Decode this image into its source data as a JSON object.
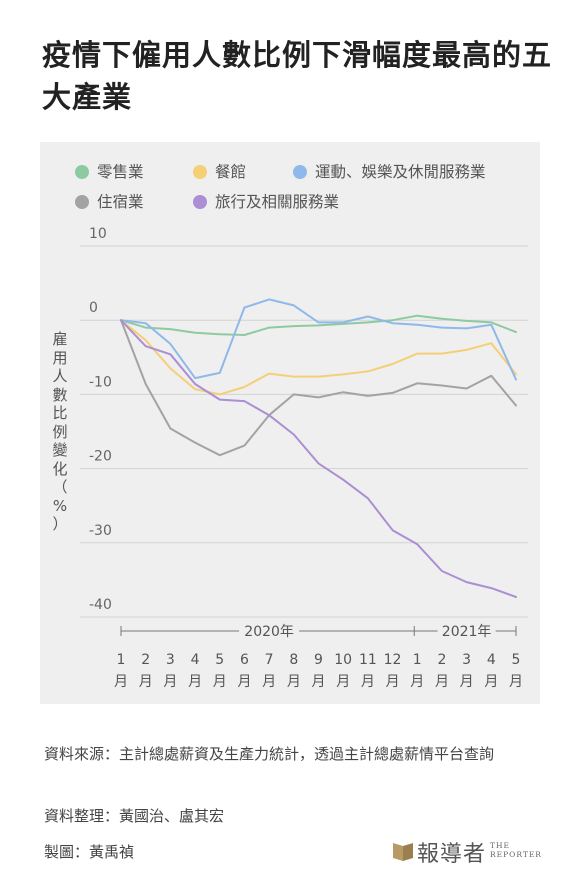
{
  "title": "疫情下僱用人數比例下滑幅度最高的五大產業",
  "ylabel_chars": [
    "雇",
    "用",
    "人",
    "數",
    "比",
    "例",
    "變",
    "化",
    "（",
    "%",
    "）"
  ],
  "footer": {
    "source": "資料來源：主計總處薪資及生產力統計，透過主計總處薪情平台查詢",
    "compiled": "資料整理：黃國治、盧其宏",
    "graphic": "製圖：黃禹禎"
  },
  "logo": {
    "zh": "報導者",
    "en_line1": "THE",
    "en_line2": "REPORTER"
  },
  "chart_data": {
    "type": "line",
    "ylabel": "雇用人數比例變化（%）",
    "ylim": [
      -40,
      10
    ],
    "yticks": [
      10,
      0,
      -10,
      -20,
      -30,
      -40
    ],
    "year_labels": [
      "2020年",
      "2021年"
    ],
    "x_months": [
      "1",
      "2",
      "3",
      "4",
      "5",
      "6",
      "7",
      "8",
      "9",
      "10",
      "11",
      "12",
      "1",
      "2",
      "3",
      "4",
      "5"
    ],
    "x_unit": "月",
    "series": [
      {
        "name": "零售業",
        "color": "#8ecaa0",
        "values": [
          0,
          -1,
          -1.2,
          -1.7,
          -1.9,
          -2,
          -1,
          -0.8,
          -0.7,
          -0.5,
          -0.3,
          0,
          0.6,
          0.2,
          -0.1,
          -0.3,
          -1.6
        ]
      },
      {
        "name": "餐館",
        "color": "#f5cf76",
        "values": [
          0,
          -2.7,
          -6.5,
          -9.3,
          -10,
          -9,
          -7.2,
          -7.6,
          -7.6,
          -7.3,
          -6.9,
          -5.9,
          -4.5,
          -4.5,
          -4,
          -3.1,
          -7.3
        ]
      },
      {
        "name": "運動、娛樂及休閒服務業",
        "color": "#8fb9ea",
        "values": [
          0,
          -0.4,
          -3.2,
          -7.8,
          -7.1,
          1.7,
          2.8,
          2,
          -0.3,
          -0.3,
          0.5,
          -0.4,
          -0.6,
          -1,
          -1.1,
          -0.6,
          -8
        ]
      },
      {
        "name": "住宿業",
        "color": "#a3a3a3",
        "values": [
          0,
          -8.6,
          -14.6,
          -16.5,
          -18.2,
          -16.9,
          -12.8,
          -10,
          -10.4,
          -9.7,
          -10.2,
          -9.8,
          -8.5,
          -8.8,
          -9.2,
          -7.5,
          -11.5
        ]
      },
      {
        "name": "旅行及相關服務業",
        "color": "#ab8ed3",
        "values": [
          0,
          -3.5,
          -4.6,
          -8.6,
          -10.7,
          -10.9,
          -12.8,
          -15.4,
          -19.3,
          -21.5,
          -24,
          -28.3,
          -30.2,
          -33.8,
          -35.3,
          -36.1,
          -37.3
        ]
      }
    ]
  }
}
